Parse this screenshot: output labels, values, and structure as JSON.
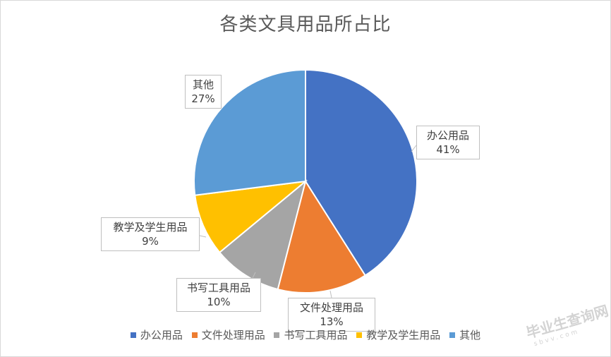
{
  "chart_data": {
    "type": "pie",
    "title": "各类文具用品所占比",
    "categories": [
      "办公用品",
      "文件处理用品",
      "书写工具用品",
      "教学及学生用品",
      "其他"
    ],
    "values": [
      41,
      13,
      10,
      9,
      27
    ],
    "data_labels": [
      "41%",
      "13%",
      "10%",
      "9%",
      "27%"
    ],
    "colors": [
      "#4472c4",
      "#ed7d31",
      "#a5a5a5",
      "#ffc000",
      "#5b9bd5"
    ],
    "legend_position": "bottom",
    "start_angle_deg": 0,
    "direction": "clockwise"
  },
  "watermark": {
    "text": "毕业生查询网",
    "sub": "sbvv.com"
  }
}
